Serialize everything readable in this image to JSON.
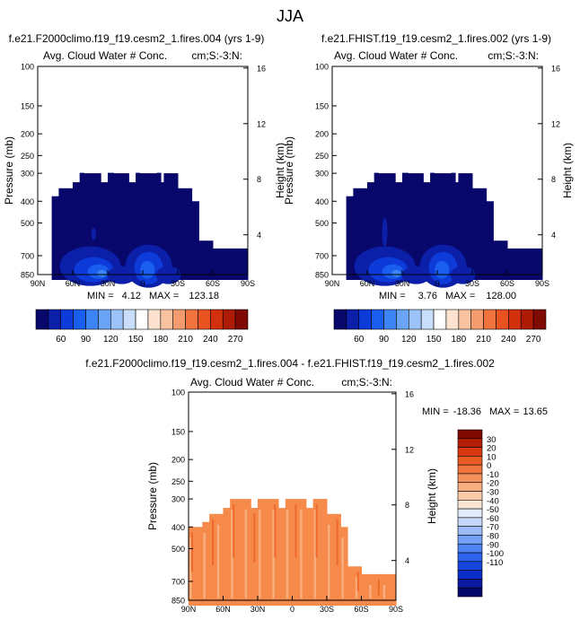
{
  "figure": {
    "title": "JJA"
  },
  "colors": {
    "seq_palette": [
      "#08076b",
      "#0b1fa8",
      "#0d3bd9",
      "#1a5ef0",
      "#3d85f5",
      "#6aa4f7",
      "#9cc3f8",
      "#c9defa",
      "#ffffff",
      "#fde3cf",
      "#f9c2a0",
      "#f59b70",
      "#f0733f",
      "#e8531f",
      "#d3300d",
      "#ad1a06",
      "#7e0a02"
    ],
    "diff_palette": [
      "#06076b",
      "#0a1aa0",
      "#0b2ec6",
      "#1746df",
      "#2e63ec",
      "#4e83f2",
      "#749ff5",
      "#9dbaf7",
      "#c5d6f9",
      "#e2ebfb",
      "#fde5d3",
      "#fac9a8",
      "#f6ad80",
      "#f3915d",
      "#f0763d",
      "#ea5b23",
      "#d8380f",
      "#b41e07",
      "#7e0a02"
    ],
    "diff_fill_main": "#f58a4a",
    "diff_fill_light": "#f8ae7c",
    "diff_fill_dark": "#ef6a2a"
  },
  "panels": [
    {
      "title": "f.e21.F2000climo.f19_f19.cesm2_1.fires.004 (yrs 1-9)",
      "left_label": "Avg. Cloud Water # Conc.",
      "right_label": "cm;S:-3:N:",
      "ylabel": "Pressure (mb)",
      "y2label": "Height (km)",
      "ytick_labels": [
        "100",
        "150",
        "200",
        "250",
        "300",
        "400",
        "500",
        "700",
        "850"
      ],
      "y2tick_labels": [
        "16",
        "12",
        "8",
        "4"
      ],
      "xtick_labels": [
        "90N",
        "60N",
        "30N",
        "0",
        "30S",
        "60S",
        "90S"
      ],
      "min_label": "MIN =",
      "min_value": "4.12",
      "max_label": "MAX =",
      "max_value": "123.18"
    },
    {
      "title": "f.e21.FHIST.f19_f19.cesm2_1.fires.002 (yrs 1-9)",
      "left_label": "Avg. Cloud Water # Conc.",
      "right_label": "cm;S:-3:N:",
      "ylabel": "Pressure (mb)",
      "y2label": "Height (km)",
      "ytick_labels": [
        "100",
        "150",
        "200",
        "250",
        "300",
        "400",
        "500",
        "700",
        "850"
      ],
      "y2tick_labels": [
        "16",
        "12",
        "8",
        "4"
      ],
      "xtick_labels": [
        "90N",
        "60N",
        "30N",
        "0",
        "30S",
        "60S",
        "90S"
      ],
      "min_label": "MIN =",
      "min_value": "3.76",
      "max_label": "MAX =",
      "max_value": "128.00"
    },
    {
      "title": "f.e21.F2000climo.f19_f19.cesm2_1.fires.004 - f.e21.FHIST.f19_f19.cesm2_1.fires.002",
      "left_label": "Avg. Cloud Water # Conc.",
      "right_label": "cm;S:-3:N:",
      "ylabel": "Pressure (mb)",
      "y2label": "Height (km)",
      "ytick_labels": [
        "100",
        "150",
        "200",
        "250",
        "300",
        "400",
        "500",
        "700",
        "850"
      ],
      "y2tick_labels": [
        "16",
        "12",
        "8",
        "4"
      ],
      "xtick_labels": [
        "90N",
        "60N",
        "30N",
        "0",
        "30S",
        "60S",
        "90S"
      ],
      "min_label": "MIN =",
      "min_value": "-18.36",
      "max_label": "MAX =",
      "max_value": "13.65"
    }
  ],
  "colorbar_seq": {
    "labels": [
      "60",
      "90",
      "120",
      "150",
      "180",
      "210",
      "240",
      "270"
    ]
  },
  "colorbar_diff": {
    "labels": [
      "30",
      "20",
      "10",
      "0",
      "-10",
      "-20",
      "-30",
      "-40",
      "-50",
      "-60",
      "-70",
      "-80",
      "-90",
      "-100",
      "-110"
    ]
  },
  "chart_data": [
    {
      "type": "heatmap",
      "title": "f.e21.F2000climo.f19_f19.cesm2_1.fires.004 (yrs 1-9)",
      "xlabel": "",
      "ylabel": "Pressure (mb)",
      "y2label": "Height (km)",
      "xlim": [
        90,
        -90
      ],
      "ylim": [
        100,
        850
      ],
      "yscale": "log",
      "contour_levels": [
        60,
        90,
        120,
        150,
        180,
        210,
        240,
        270
      ],
      "min": 4.12,
      "max": 123.18,
      "cloud_top_profile": {
        "lat": [
          90,
          80,
          70,
          60,
          40,
          20,
          10,
          -10,
          -30,
          -40,
          -50,
          -60,
          -70,
          -80,
          -90
        ],
        "top_pressure": [
          400,
          380,
          350,
          300,
          300,
          300,
          300,
          300,
          350,
          400,
          600,
          650,
          650,
          650,
          700
        ]
      }
    },
    {
      "type": "heatmap",
      "title": "f.e21.FHIST.f19_f19.cesm2_1.fires.002 (yrs 1-9)",
      "xlabel": "",
      "ylabel": "Pressure (mb)",
      "y2label": "Height (km)",
      "xlim": [
        90,
        -90
      ],
      "ylim": [
        100,
        850
      ],
      "yscale": "log",
      "contour_levels": [
        60,
        90,
        120,
        150,
        180,
        210,
        240,
        270
      ],
      "min": 3.76,
      "max": 128.0,
      "cloud_top_profile": {
        "lat": [
          90,
          80,
          70,
          60,
          40,
          20,
          10,
          -10,
          -30,
          -40,
          -50,
          -60,
          -70,
          -80,
          -90
        ],
        "top_pressure": [
          400,
          380,
          350,
          300,
          300,
          300,
          300,
          300,
          350,
          400,
          600,
          650,
          650,
          650,
          700
        ]
      }
    },
    {
      "type": "heatmap",
      "title": "f.e21.F2000climo.f19_f19.cesm2_1.fires.004 - f.e21.FHIST.f19_f19.cesm2_1.fires.002",
      "xlabel": "",
      "ylabel": "Pressure (mb)",
      "y2label": "Height (km)",
      "xlim": [
        90,
        -90
      ],
      "ylim": [
        100,
        850
      ],
      "yscale": "log",
      "contour_levels": [
        30,
        20,
        10,
        0,
        -10,
        -20,
        -30,
        -40,
        -50,
        -60,
        -70,
        -80,
        -90,
        -100,
        -110
      ],
      "min": -18.36,
      "max": 13.65
    }
  ]
}
